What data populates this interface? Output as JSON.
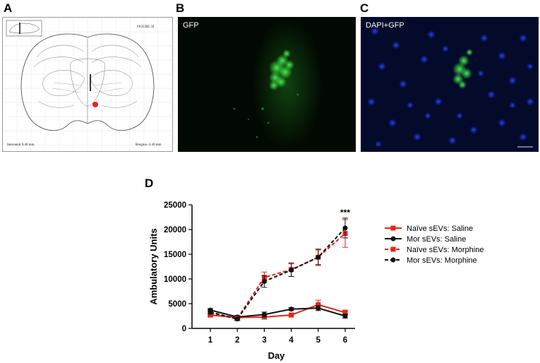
{
  "panels": {
    "a": {
      "letter": "A",
      "figure_label": "FIGURE 50",
      "interaural": "Interaural 0.40 mm",
      "bregma": "Bregma -3.40 mm"
    },
    "b": {
      "letter": "B",
      "label": "GFP"
    },
    "c": {
      "letter": "C",
      "label": "DAPI+GFP"
    },
    "d": {
      "letter": "D"
    }
  },
  "colors": {
    "red": "#e8231b",
    "black": "#111111",
    "gfp": "#35e03a",
    "dapi": "#1030e0"
  },
  "chart_data": {
    "type": "line",
    "xlabel": "Day",
    "ylabel": "Ambulatory Units",
    "x": [
      1,
      2,
      3,
      4,
      5,
      6
    ],
    "xticks": [
      "1",
      "2",
      "3",
      "4",
      "5",
      "6"
    ],
    "ylim": [
      0,
      25000
    ],
    "yticks": [
      "0",
      "5000",
      "10000",
      "15000",
      "20000",
      "25000"
    ],
    "annotation": "***",
    "legend_position": "right",
    "series": [
      {
        "name": "Naïve sEVs: Saline",
        "values": [
          2700,
          2200,
          2300,
          2700,
          4800,
          3200
        ],
        "errors": [
          300,
          300,
          400,
          400,
          900,
          500
        ],
        "color": "#e8231b",
        "marker": "square",
        "dash": false
      },
      {
        "name": "Mor sEVs: Saline",
        "values": [
          3700,
          2300,
          2800,
          3900,
          4100,
          2500
        ],
        "errors": [
          300,
          300,
          500,
          300,
          500,
          400
        ],
        "color": "#111111",
        "marker": "circle",
        "dash": false
      },
      {
        "name": "Naïve sEVs: Morphine",
        "values": [
          3000,
          2000,
          10300,
          11900,
          14400,
          19200
        ],
        "errors": [
          400,
          300,
          1100,
          1400,
          1700,
          2800
        ],
        "color": "#e8231b",
        "marker": "square",
        "dash": true
      },
      {
        "name": "Mor sEVs: Morphine",
        "values": [
          3300,
          1900,
          9500,
          11800,
          14400,
          20300
        ],
        "errors": [
          400,
          300,
          1200,
          1300,
          1500,
          2000
        ],
        "color": "#111111",
        "marker": "circle",
        "dash": true
      }
    ]
  }
}
